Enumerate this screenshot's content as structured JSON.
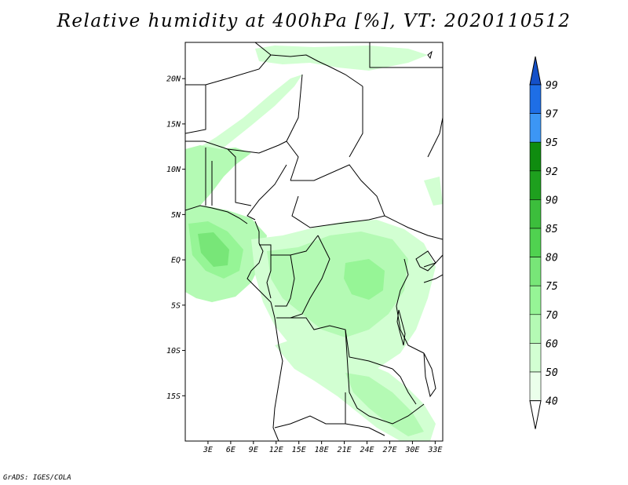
{
  "title": "Relative humidity at 400hPa [%], VT: 2020110512",
  "credit": "GrADS: IGES/COLA",
  "map": {
    "region": "Central Africa",
    "variable": "Relative humidity",
    "level": "400hPa",
    "units": "%",
    "valid_time": "2020110512",
    "lon_range": [
      0,
      34
    ],
    "lat_range": [
      -20,
      24
    ],
    "lon_ticks": [
      "3E",
      "6E",
      "9E",
      "12E",
      "15E",
      "18E",
      "21E",
      "24E",
      "27E",
      "30E",
      "33E"
    ],
    "lat_ticks": [
      "20N",
      "15N",
      "10N",
      "5N",
      "EQ",
      "5S",
      "10S",
      "15S"
    ],
    "colorbar": {
      "labels": [
        "99",
        "97",
        "95",
        "92",
        "90",
        "85",
        "80",
        "75",
        "70",
        "60",
        "50",
        "40"
      ],
      "colors": [
        "#1c64d2",
        "#1e6ee6",
        "#3c96f5",
        "#0f8c0f",
        "#1ea01e",
        "#3cbe3c",
        "#50d250",
        "#78e678",
        "#96f596",
        "#b4fab4",
        "#d2ffd2",
        "#ebffeb"
      ],
      "top_arrow_color": "#1450c8",
      "bottom_arrow_color": "#ffffff"
    },
    "humidity_colors": {
      "light": "#d2ffd2",
      "medium": "#b4fab4",
      "strong": "#96f596",
      "deep": "#78e678"
    }
  }
}
